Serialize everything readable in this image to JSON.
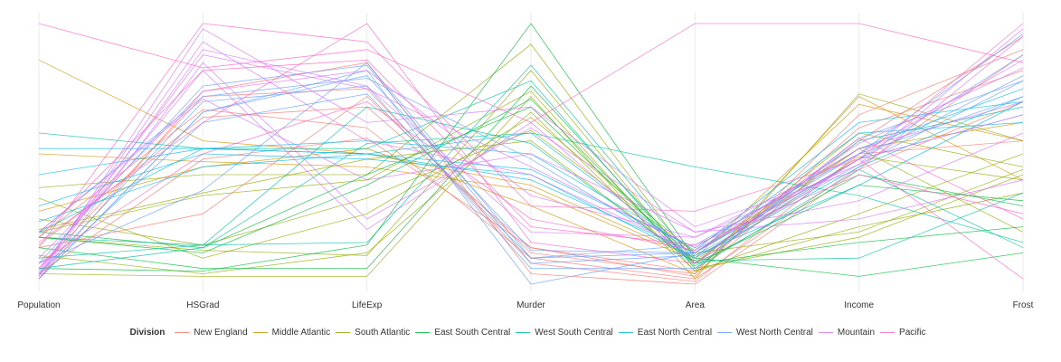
{
  "chart_data": {
    "type": "line",
    "subtype": "parallel-coordinates",
    "x": [
      "Population",
      "HSGrad",
      "LifeExp",
      "Murder",
      "Area",
      "Income",
      "Frost"
    ],
    "ylim": [
      0,
      1
    ],
    "grid": true,
    "legend": {
      "title": "Division",
      "position": "bottom",
      "entries": [
        {
          "name": "New England",
          "color": "#F8766D"
        },
        {
          "name": "Middle Atlantic",
          "color": "#D39200"
        },
        {
          "name": "South Atlantic",
          "color": "#93AA00"
        },
        {
          "name": "East South Central",
          "color": "#00BA38"
        },
        {
          "name": "West South Central",
          "color": "#00C19F"
        },
        {
          "name": "East North Central",
          "color": "#00B9E3"
        },
        {
          "name": "West North Central",
          "color": "#619CFF"
        },
        {
          "name": "Mountain",
          "color": "#DB72FB"
        },
        {
          "name": "Pacific",
          "color": "#FF61C3"
        }
      ]
    },
    "series": [
      {
        "division": "New England",
        "values": [
          0.14,
          0.27,
          0.72,
          0.12,
          0.04,
          0.55,
          0.95
        ]
      },
      {
        "division": "New England",
        "values": [
          0.04,
          0.48,
          0.56,
          0.14,
          0.03,
          0.65,
          0.9
        ]
      },
      {
        "division": "New England",
        "values": [
          0.18,
          0.67,
          0.6,
          0.1,
          0.02,
          0.45,
          0.88
        ]
      },
      {
        "division": "New England",
        "values": [
          0.06,
          0.72,
          0.75,
          0.08,
          0.01,
          0.5,
          0.55
        ]
      },
      {
        "division": "New England",
        "values": [
          0.02,
          0.74,
          0.85,
          0.04,
          0.0,
          0.44,
          0.7
        ]
      },
      {
        "division": "New England",
        "values": [
          0.15,
          0.64,
          0.68,
          0.14,
          0.05,
          0.6,
          0.82
        ]
      },
      {
        "division": "Middle Atlantic",
        "values": [
          0.86,
          0.55,
          0.5,
          0.38,
          0.1,
          0.69,
          0.55
        ]
      },
      {
        "division": "Middle Atlantic",
        "values": [
          0.28,
          0.45,
          0.52,
          0.3,
          0.04,
          0.72,
          0.4
        ]
      },
      {
        "division": "Middle Atlantic",
        "values": [
          0.5,
          0.47,
          0.45,
          0.36,
          0.09,
          0.52,
          0.62
        ]
      },
      {
        "division": "South Atlantic",
        "values": [
          0.04,
          0.03,
          0.03,
          0.72,
          0.02,
          0.73,
          0.55
        ]
      },
      {
        "division": "South Atlantic",
        "values": [
          0.25,
          0.15,
          0.33,
          0.59,
          0.12,
          0.52,
          0.2
        ]
      },
      {
        "division": "South Atlantic",
        "values": [
          0.37,
          0.42,
          0.42,
          0.92,
          0.08,
          0.58,
          0.45
        ]
      },
      {
        "division": "South Atlantic",
        "values": [
          0.21,
          0.35,
          0.48,
          0.55,
          0.08,
          0.49,
          0.4
        ]
      },
      {
        "division": "South Atlantic",
        "values": [
          0.18,
          0.13,
          0.11,
          0.82,
          0.06,
          0.18,
          0.42
        ]
      },
      {
        "division": "South Atlantic",
        "values": [
          0.11,
          0.04,
          0.12,
          0.66,
          0.05,
          0.22,
          0.35
        ]
      },
      {
        "division": "South Atlantic",
        "values": [
          0.2,
          0.34,
          0.4,
          0.74,
          0.05,
          0.27,
          0.5
        ]
      },
      {
        "division": "South Atlantic",
        "values": [
          0.33,
          0.1,
          0.27,
          0.64,
          0.12,
          0.2,
          0.44
        ]
      },
      {
        "division": "East South Central",
        "values": [
          0.14,
          0.06,
          0.06,
          0.76,
          0.08,
          0.16,
          0.22
        ]
      },
      {
        "division": "East South Central",
        "values": [
          0.18,
          0.12,
          0.38,
          0.71,
          0.07,
          0.42,
          0.3
        ]
      },
      {
        "division": "East South Central",
        "values": [
          0.2,
          0.14,
          0.42,
          0.68,
          0.08,
          0.38,
          0.32
        ]
      },
      {
        "division": "East South Central",
        "values": [
          0.06,
          0.05,
          0.15,
          1.0,
          0.1,
          0.03,
          0.12
        ]
      },
      {
        "division": "West South Central",
        "values": [
          0.06,
          0.14,
          0.54,
          0.58,
          0.45,
          0.34,
          0.16
        ]
      },
      {
        "division": "West South Central",
        "values": [
          0.58,
          0.52,
          0.52,
          0.78,
          0.06,
          0.44,
          0.14
        ]
      },
      {
        "division": "West South Central",
        "values": [
          0.18,
          0.15,
          0.16,
          0.84,
          0.09,
          0.1,
          0.35
        ]
      },
      {
        "division": "West South Central",
        "values": [
          0.1,
          0.15,
          0.68,
          0.54,
          0.08,
          0.55,
          0.68
        ]
      },
      {
        "division": "East North Central",
        "values": [
          0.42,
          0.52,
          0.55,
          0.5,
          0.13,
          0.62,
          0.7
        ]
      },
      {
        "division": "East North Central",
        "values": [
          0.3,
          0.5,
          0.48,
          0.42,
          0.1,
          0.45,
          0.72
        ]
      },
      {
        "division": "East North Central",
        "values": [
          0.2,
          0.52,
          0.5,
          0.58,
          0.11,
          0.38,
          0.7
        ]
      },
      {
        "division": "East North Central",
        "values": [
          0.52,
          0.52,
          0.5,
          0.44,
          0.14,
          0.52,
          0.75
        ]
      },
      {
        "division": "East North Central",
        "values": [
          0.24,
          0.45,
          0.5,
          0.4,
          0.12,
          0.58,
          0.62
        ]
      },
      {
        "division": "West North Central",
        "values": [
          0.08,
          0.76,
          0.84,
          0.08,
          0.11,
          0.46,
          0.78
        ]
      },
      {
        "division": "West North Central",
        "values": [
          0.02,
          0.66,
          0.8,
          0.13,
          0.12,
          0.48,
          0.88
        ]
      },
      {
        "division": "West North Central",
        "values": [
          0.08,
          0.36,
          0.85,
          0.1,
          0.15,
          0.5,
          0.96
        ]
      },
      {
        "division": "West North Central",
        "values": [
          0.04,
          0.62,
          0.73,
          0.1,
          0.12,
          0.5,
          0.72
        ]
      },
      {
        "division": "West North Central",
        "values": [
          0.02,
          0.66,
          0.82,
          0.0,
          0.12,
          0.48,
          0.8
        ]
      },
      {
        "division": "West North Central",
        "values": [
          0.2,
          0.72,
          0.79,
          0.48,
          0.1,
          0.48,
          0.65
        ]
      },
      {
        "division": "West North Central",
        "values": [
          0.04,
          0.7,
          0.76,
          0.06,
          0.06,
          0.56,
          0.78
        ]
      },
      {
        "division": "Mountain",
        "values": [
          0.03,
          0.98,
          0.62,
          0.68,
          0.22,
          0.44,
          0.95
        ]
      },
      {
        "division": "Mountain",
        "values": [
          0.1,
          0.74,
          0.82,
          0.34,
          0.18,
          0.5,
          0.86
        ]
      },
      {
        "division": "Mountain",
        "values": [
          0.03,
          0.9,
          0.76,
          0.2,
          0.18,
          0.46,
          0.98
        ]
      },
      {
        "division": "Mountain",
        "values": [
          0.05,
          0.88,
          0.75,
          0.45,
          0.14,
          0.52,
          0.7
        ]
      },
      {
        "division": "Mountain",
        "values": [
          0.06,
          0.82,
          0.21,
          0.62,
          0.08,
          0.48,
          0.65
        ]
      },
      {
        "division": "Mountain",
        "values": [
          0.02,
          0.85,
          0.25,
          0.6,
          0.2,
          0.32,
          0.58
        ]
      },
      {
        "division": "Mountain",
        "values": [
          0.04,
          0.93,
          0.55,
          0.42,
          0.12,
          0.54,
          0.83
        ]
      },
      {
        "division": "Mountain",
        "values": [
          0.2,
          0.71,
          0.4,
          0.5,
          0.2,
          0.25,
          0.4
        ]
      },
      {
        "division": "Pacific",
        "values": [
          1.0,
          0.83,
          0.9,
          0.62,
          1.0,
          1.0,
          0.85
        ]
      },
      {
        "division": "Pacific",
        "values": [
          0.14,
          1.0,
          0.93,
          0.3,
          0.28,
          0.48,
          0.02
        ]
      },
      {
        "division": "Pacific",
        "values": [
          0.18,
          0.82,
          0.86,
          0.22,
          0.15,
          0.42,
          0.27
        ]
      },
      {
        "division": "Pacific",
        "values": [
          0.16,
          0.62,
          1.0,
          0.16,
          0.08,
          0.56,
          0.25
        ]
      },
      {
        "division": "Pacific",
        "values": [
          0.08,
          0.5,
          0.7,
          0.25,
          0.13,
          0.48,
          1.0
        ]
      }
    ]
  }
}
